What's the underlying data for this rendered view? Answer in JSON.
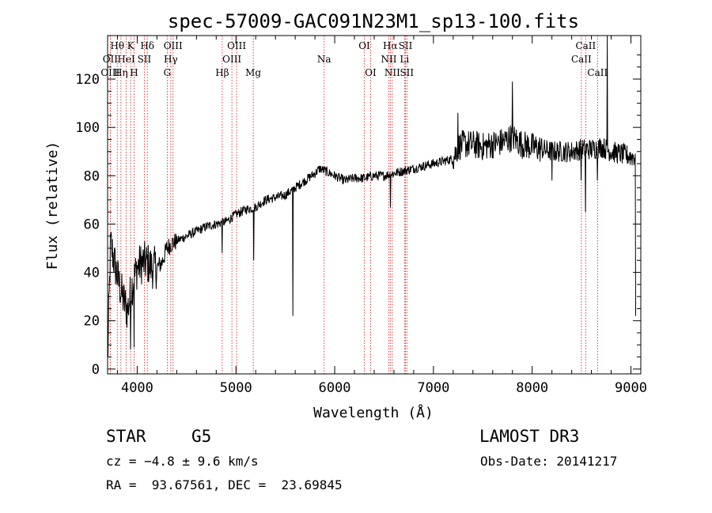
{
  "chart_data": {
    "type": "line",
    "title": "spec-57009-GAC091N23M1_sp13-100.fits",
    "xlabel": "Wavelength (Å)",
    "ylabel": "Flux (relative)",
    "xlim": [
      3700,
      9100
    ],
    "ylim": [
      -2,
      138
    ],
    "xticks": [
      4000,
      5000,
      6000,
      7000,
      8000,
      9000
    ],
    "yticks": [
      0,
      20,
      40,
      60,
      80,
      100,
      120
    ],
    "spectrum_anchors": {
      "x": [
        3700,
        3730,
        3760,
        3800,
        3850,
        3900,
        3950,
        4000,
        4050,
        4100,
        4150,
        4200,
        4250,
        4300,
        4350,
        4400,
        4500,
        4600,
        4700,
        4800,
        4900,
        5000,
        5100,
        5200,
        5300,
        5400,
        5500,
        5600,
        5700,
        5800,
        5850,
        5900,
        5950,
        6000,
        6100,
        6200,
        6300,
        6400,
        6500,
        6600,
        6700,
        6800,
        6900,
        7000,
        7100,
        7200,
        7250,
        7300,
        7400,
        7500,
        7600,
        7700,
        7800,
        7900,
        8000,
        8100,
        8200,
        8300,
        8400,
        8500,
        8600,
        8700,
        8800,
        8900,
        9000
      ],
      "y": [
        2,
        52,
        46,
        38,
        30,
        24,
        35,
        42,
        44,
        44,
        42,
        42,
        44,
        50,
        52,
        53,
        55,
        57,
        59,
        60,
        61,
        64,
        66,
        67,
        70,
        71,
        72,
        75,
        78,
        81,
        83,
        82,
        81,
        80,
        78,
        79,
        79,
        80,
        80,
        81,
        82,
        83,
        84,
        85,
        86,
        87,
        92,
        93,
        93,
        92,
        93,
        94,
        96,
        93,
        92,
        91,
        90,
        90,
        90,
        91,
        91,
        92,
        90,
        89,
        88
      ]
    },
    "absorption_dips": [
      {
        "x": 5577,
        "y": 22
      },
      {
        "x": 5180,
        "y": 45
      },
      {
        "x": 4861,
        "y": 48
      },
      {
        "x": 6563,
        "y": 67
      },
      {
        "x": 8498,
        "y": 78
      },
      {
        "x": 8542,
        "y": 65
      },
      {
        "x": 8662,
        "y": 78
      },
      {
        "x": 8200,
        "y": 78
      },
      {
        "x": 3934,
        "y": 8
      },
      {
        "x": 3968,
        "y": 9
      },
      {
        "x": 9050,
        "y": 22
      }
    ],
    "emission_spikes": [
      {
        "x": 8760,
        "y": 138
      },
      {
        "x": 7800,
        "y": 119
      },
      {
        "x": 7250,
        "y": 106
      }
    ],
    "lines": [
      {
        "x": 3727,
        "label": "OII",
        "row": 1
      },
      {
        "x": 3727,
        "label": "OIII",
        "row": 2
      },
      {
        "x": 3798,
        "label": "Hθ",
        "row": 0
      },
      {
        "x": 3835,
        "label": "Hη",
        "row": 2
      },
      {
        "x": 3889,
        "label": "HeI",
        "row": 1
      },
      {
        "x": 3934,
        "label": "K",
        "row": 0
      },
      {
        "x": 3968,
        "label": "H",
        "row": 2
      },
      {
        "x": 4072,
        "label": "SII",
        "row": 1
      },
      {
        "x": 4102,
        "label": "Hδ",
        "row": 0
      },
      {
        "x": 4304,
        "label": "G",
        "row": 2
      },
      {
        "x": 4340,
        "label": "Hγ",
        "row": 1
      },
      {
        "x": 4363,
        "label": "OIII",
        "row": 0
      },
      {
        "x": 4861,
        "label": "Hβ",
        "row": 2
      },
      {
        "x": 4959,
        "label": "OIII",
        "row": 1
      },
      {
        "x": 5007,
        "label": "OIII",
        "row": 0
      },
      {
        "x": 5175,
        "label": "Mg",
        "row": 2
      },
      {
        "x": 5893,
        "label": "Na",
        "row": 1
      },
      {
        "x": 6300,
        "label": "OI",
        "row": 0
      },
      {
        "x": 6364,
        "label": "OI",
        "row": 2
      },
      {
        "x": 6548,
        "label": "NII",
        "row": 1
      },
      {
        "x": 6563,
        "label": "Hα",
        "row": 0
      },
      {
        "x": 6583,
        "label": "NII",
        "row": 2
      },
      {
        "x": 6707,
        "label": "Li",
        "row": 1
      },
      {
        "x": 6717,
        "label": "SII",
        "row": 0
      },
      {
        "x": 6731,
        "label": "SII",
        "row": 2
      },
      {
        "x": 8498,
        "label": "CaII",
        "row": 1
      },
      {
        "x": 8542,
        "label": "CaII",
        "row": 0
      },
      {
        "x": 8662,
        "label": "CaII",
        "row": 2
      }
    ]
  },
  "info": {
    "class_label": "STAR",
    "subclass": "G5",
    "survey": "LAMOST DR3",
    "cz": "cz = −4.8 ± 9.6 km/s",
    "obs_date": "Obs-Date: 20141217",
    "coords": "RA =  93.67561, DEC =  23.69845"
  }
}
